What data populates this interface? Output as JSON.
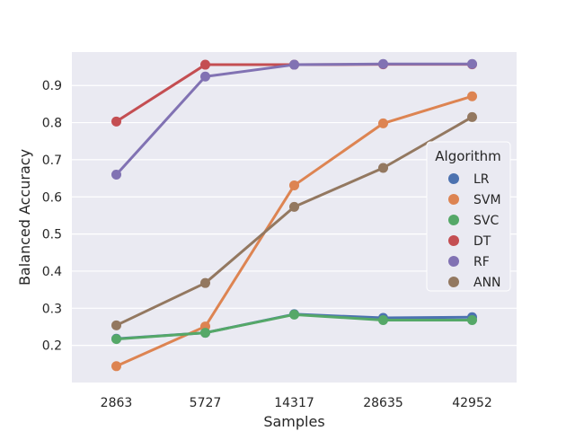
{
  "chart_data": {
    "type": "line",
    "categories": [
      "2863",
      "5727",
      "14317",
      "28635",
      "42952"
    ],
    "xlabel": "Samples",
    "ylabel": "Balanced Accuracy",
    "ylim": [
      0.1,
      0.99
    ],
    "yticks": [
      0.2,
      0.3,
      0.4,
      0.5,
      0.6,
      0.7,
      0.8,
      0.9
    ],
    "grid": true,
    "legend": {
      "title": "Algorithm",
      "placement": "center-right"
    },
    "series": [
      {
        "name": "LR",
        "color": "#4c72b0",
        "values": [
          0.218,
          0.234,
          0.284,
          0.274,
          0.276
        ]
      },
      {
        "name": "SVM",
        "color": "#dd8452",
        "values": [
          0.144,
          0.251,
          0.631,
          0.798,
          0.871
        ]
      },
      {
        "name": "SVC",
        "color": "#55a868",
        "values": [
          0.217,
          0.234,
          0.283,
          0.268,
          0.268
        ]
      },
      {
        "name": "DT",
        "color": "#c44e52",
        "values": [
          0.803,
          0.956,
          0.956,
          0.957,
          0.957
        ]
      },
      {
        "name": "RF",
        "color": "#8172b3",
        "values": [
          0.66,
          0.924,
          0.956,
          0.958,
          0.958
        ]
      },
      {
        "name": "ANN",
        "color": "#937860",
        "values": [
          0.254,
          0.368,
          0.573,
          0.678,
          0.815
        ]
      }
    ]
  }
}
